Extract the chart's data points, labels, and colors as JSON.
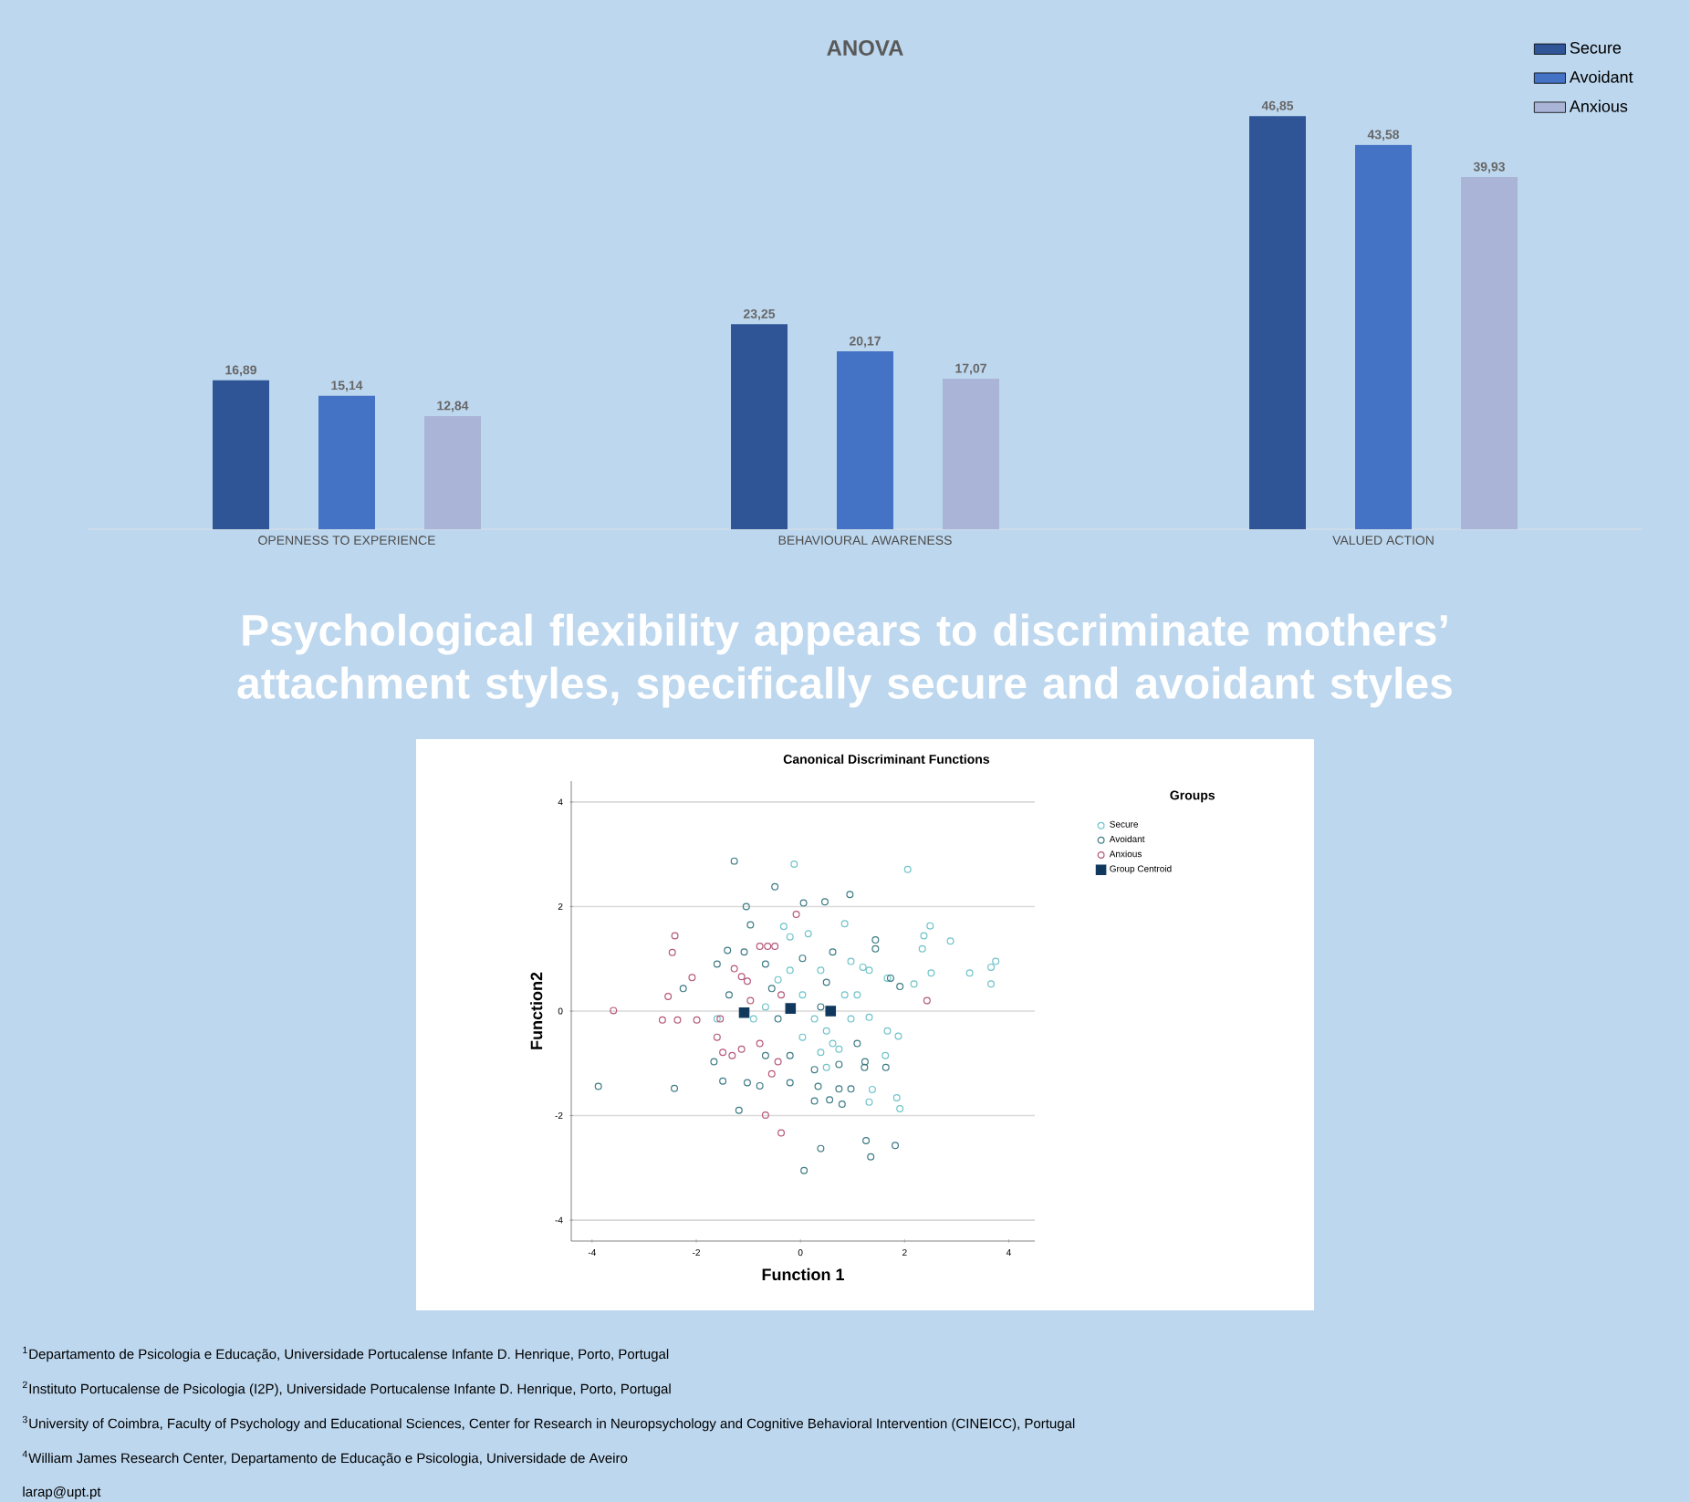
{
  "chart_data": [
    {
      "type": "bar",
      "title": "ANOVA",
      "categories": [
        "OPENNESS TO EXPERIENCE",
        "BEHAVIOURAL AWARENESS",
        "VALUED ACTION"
      ],
      "legend": "top right",
      "series": [
        {
          "name": "Secure",
          "color": "#2f5597",
          "values": [
            16.89,
            23.25,
            46.85
          ],
          "value_labels": [
            "16,89",
            "23,25",
            "46,85"
          ]
        },
        {
          "name": "Avoidant",
          "color": "#4472c4",
          "values": [
            15.14,
            20.17,
            43.58
          ],
          "value_labels": [
            "15,14",
            "20,17",
            "43,58"
          ]
        },
        {
          "name": "Anxious",
          "color": "#aab4d6",
          "values": [
            12.84,
            17.07,
            39.93
          ],
          "value_labels": [
            "12,84",
            "17,07",
            "39,93"
          ]
        }
      ],
      "annotations": [
        "Psychological flexibility appears to discriminate mothers’ attachment styles, specifically secure and avoidant styles"
      ]
    },
    {
      "type": "scatter",
      "title": "Canonical Discriminant Functions",
      "xlabel": "Function 1",
      "ylabel": "Function2",
      "legend_title": "Groups",
      "legend": "right",
      "marker": "circle",
      "grid": "y",
      "xlim": [
        -4.4,
        4.5
      ],
      "ylim": [
        -4.4,
        4.4
      ],
      "xticks": [
        -4,
        -2,
        0,
        2,
        4
      ],
      "yticks": [
        -4,
        -2,
        0,
        2,
        4
      ],
      "series": [
        {
          "name": "Secure",
          "color": "#6fc3c9",
          "x": [
            -0.12,
            2.06,
            2.49,
            2.37,
            2.34,
            2.88,
            2.51,
            2.18,
            3.25,
            3.66,
            3.75,
            3.66,
            0.85,
            1.67,
            1.67,
            1.88,
            1.32,
            1.63,
            1.85,
            1.91,
            1.32,
            1.38,
            1.2,
            0.97,
            1.32,
            0.39,
            0.15,
            -0.2,
            -0.32,
            0.62,
            0.5,
            0.74,
            0.39,
            0.04,
            0.27,
            0.97,
            0.85,
            -0.67,
            -1.6,
            -0.9,
            0.04,
            -0.2,
            0.5,
            1.09,
            -0.43
          ],
          "values": [
            2.81,
            2.71,
            1.63,
            1.44,
            1.19,
            1.34,
            0.73,
            0.52,
            0.73,
            0.84,
            0.95,
            0.52,
            1.67,
            0.63,
            -0.38,
            -0.48,
            -0.12,
            -0.85,
            -1.66,
            -1.87,
            -1.74,
            -1.5,
            0.84,
            0.95,
            0.78,
            0.78,
            1.48,
            1.42,
            1.62,
            -0.62,
            -0.38,
            -0.73,
            -0.79,
            0.31,
            -0.15,
            -0.15,
            0.31,
            0.08,
            -0.15,
            -0.15,
            -0.5,
            0.78,
            -1.08,
            0.31,
            0.6
          ]
        },
        {
          "name": "Avoidant",
          "color": "#3d7b85",
          "x": [
            -1.27,
            -3.88,
            -2.42,
            -1.18,
            -1.04,
            -1.08,
            -1.4,
            -0.96,
            -1.6,
            -2.25,
            0.39,
            0.07,
            1.35,
            1.82,
            1.26,
            0.06,
            0.47,
            0.95,
            -0.49,
            0.27,
            0.56,
            0.8,
            0.74,
            0.97,
            0.34,
            -0.2,
            -1.02,
            -1.49,
            -0.78,
            -1.66,
            1.23,
            1.64,
            1.24,
            0.74,
            0.27,
            -0.67,
            -0.2,
            0.62,
            1.44,
            1.44,
            1.73,
            1.91,
            -1.37,
            -0.67,
            0.04,
            0.5,
            -0.43,
            1.09,
            0.39,
            -0.55
          ],
          "values": [
            2.87,
            -1.44,
            -1.48,
            -1.9,
            2.0,
            1.13,
            1.16,
            1.65,
            0.9,
            0.43,
            -2.63,
            -3.05,
            -2.79,
            -2.57,
            -2.48,
            2.07,
            2.09,
            2.23,
            2.38,
            -1.72,
            -1.7,
            -1.78,
            -1.49,
            -1.49,
            -1.44,
            -1.37,
            -1.37,
            -1.34,
            -1.43,
            -0.97,
            -1.08,
            -1.08,
            -0.97,
            -1.02,
            -1.12,
            -0.85,
            -0.85,
            1.13,
            1.36,
            1.19,
            0.63,
            0.47,
            0.31,
            0.9,
            1.01,
            0.55,
            -0.15,
            -0.62,
            0.08,
            0.43
          ]
        },
        {
          "name": "Anxious",
          "color": "#b5587a",
          "x": [
            -2.41,
            -2.46,
            -2.08,
            -3.59,
            -2.65,
            -2.36,
            -1.99,
            -1.27,
            -1.13,
            -1.02,
            -0.78,
            -0.63,
            -0.49,
            -0.08,
            -1.49,
            -1.31,
            -1.13,
            -0.67,
            -0.37,
            2.43,
            -1.6,
            -0.78,
            -0.43,
            -0.55,
            -2.54,
            -1.54,
            -0.96,
            -0.37
          ],
          "values": [
            1.44,
            1.12,
            0.64,
            0.01,
            -0.17,
            -0.17,
            -0.17,
            0.81,
            0.66,
            0.57,
            1.24,
            1.24,
            1.24,
            1.85,
            -0.79,
            -0.85,
            -0.73,
            -1.99,
            -2.33,
            0.2,
            -0.5,
            -0.62,
            -0.97,
            -1.2,
            0.28,
            -0.15,
            0.2,
            0.31
          ]
        },
        {
          "name": "Group Centroid",
          "color": "#10385c",
          "marker": "square",
          "x": [
            -1.08,
            -0.19,
            0.58
          ],
          "values": [
            -0.03,
            0.05,
            0.0
          ]
        }
      ],
      "annotations": [
        "$^{1}$Departamento de Psicologia e Educação, Universidade Portucalense Infante D. Henrique, Porto, Portugal",
        "$^{2}$Instituto Portucalense de Psicologia (I2P), Universidade Portucalense Infante D. Henrique, Porto, Portugal",
        "$^{3}$University of Coimbra, Faculty of Psychology and Educational Sciences, Center for Research in Neuropsychology and Cognitive Behavioral Intervention (CINEICC), Portugal",
        "$^{4}$William James Research Center, Departamento de Educação e Psicologia, Universidade de Aveiro",
        "larap@upt.pt"
      ]
    }
  ]
}
